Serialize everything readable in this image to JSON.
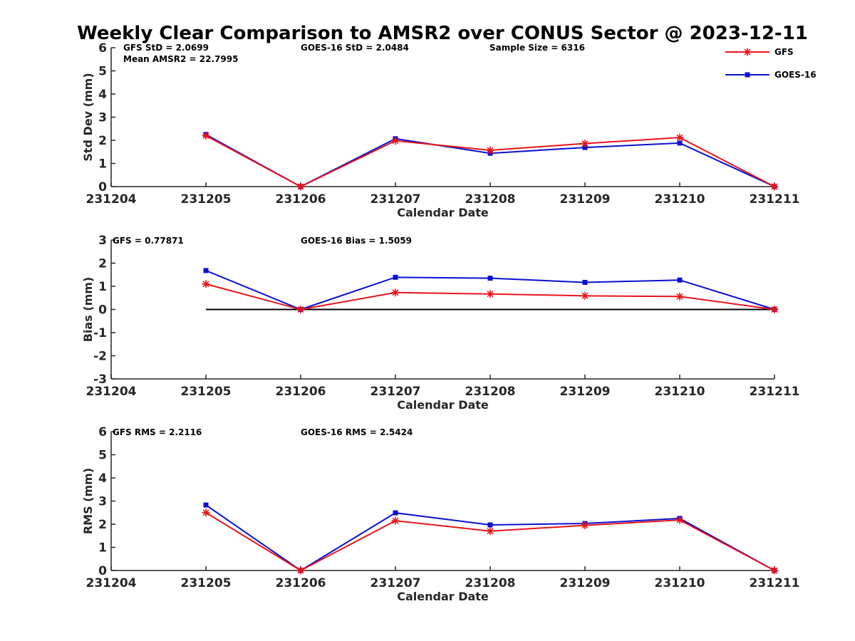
{
  "chart_title": "Weekly Clear Comparison to AMSR2 over CONUS Sector @ 2023-12-11",
  "legend": {
    "placement": "top-right",
    "entries": [
      {
        "name": "GFS",
        "color": "#e8141c",
        "marker": "asterisk"
      },
      {
        "name": "GOES-16",
        "color": "#0a10d0",
        "marker": "square"
      }
    ]
  },
  "chart_data": [
    {
      "type": "line",
      "x_ticks": [
        "231204",
        "231205",
        "231206",
        "231207",
        "231208",
        "231209",
        "231210",
        "231211"
      ],
      "x": [
        "231205",
        "231206",
        "231207",
        "231208",
        "231209",
        "231210",
        "231211"
      ],
      "xlabel": "Calendar Date",
      "ylabel": "Std Dev (mm)",
      "ylim": [
        0,
        6
      ],
      "y_ticks": [
        "0",
        "1",
        "2",
        "3",
        "4",
        "5",
        "6"
      ],
      "series": [
        {
          "name": "GFS",
          "values": [
            2.2,
            0.0,
            1.98,
            1.57,
            1.86,
            2.12,
            0.0
          ]
        },
        {
          "name": "GOES-16",
          "values": [
            2.25,
            0.0,
            2.07,
            1.44,
            1.69,
            1.88,
            0.0
          ]
        }
      ],
      "zero_line": false,
      "annotations": [
        "GFS StD = 2.0699",
        "GOES-16 StD = 2.0484",
        "Sample Size = 6316",
        "Mean AMSR2 = 22.7995"
      ]
    },
    {
      "type": "line",
      "x_ticks": [
        "231204",
        "231205",
        "231206",
        "231207",
        "231208",
        "231209",
        "231210",
        "231211"
      ],
      "x": [
        "231205",
        "231206",
        "231207",
        "231208",
        "231209",
        "231210",
        "231211"
      ],
      "xlabel": "Calendar Date",
      "ylabel": "Bias (mm)",
      "ylim": [
        -3,
        3
      ],
      "y_ticks": [
        "-3",
        "-2",
        "-1",
        "0",
        "1",
        "2",
        "3"
      ],
      "series": [
        {
          "name": "GFS",
          "values": [
            1.1,
            0.0,
            0.73,
            0.67,
            0.59,
            0.56,
            0.0
          ]
        },
        {
          "name": "GOES-16",
          "values": [
            1.68,
            0.0,
            1.39,
            1.35,
            1.17,
            1.27,
            0.0
          ]
        }
      ],
      "zero_line": true,
      "annotations": [
        "GFS = 0.77871",
        "GOES-16 Bias  = 1.5059"
      ]
    },
    {
      "type": "line",
      "x_ticks": [
        "231204",
        "231205",
        "231206",
        "231207",
        "231208",
        "231209",
        "231210",
        "231211"
      ],
      "x": [
        "231205",
        "231206",
        "231207",
        "231208",
        "231209",
        "231210",
        "231211"
      ],
      "xlabel": "Calendar Date",
      "ylabel": "RMS (mm)",
      "ylim": [
        0,
        6
      ],
      "y_ticks": [
        "0",
        "1",
        "2",
        "3",
        "4",
        "5",
        "6"
      ],
      "series": [
        {
          "name": "GFS",
          "values": [
            2.5,
            0.0,
            2.15,
            1.7,
            1.95,
            2.18,
            0.0
          ]
        },
        {
          "name": "GOES-16",
          "values": [
            2.83,
            0.0,
            2.49,
            1.97,
            2.03,
            2.25,
            0.0
          ]
        }
      ],
      "zero_line": false,
      "annotations": [
        "GFS RMS = 2.2116",
        "GOES-16 RMS = 2.5424"
      ]
    }
  ]
}
